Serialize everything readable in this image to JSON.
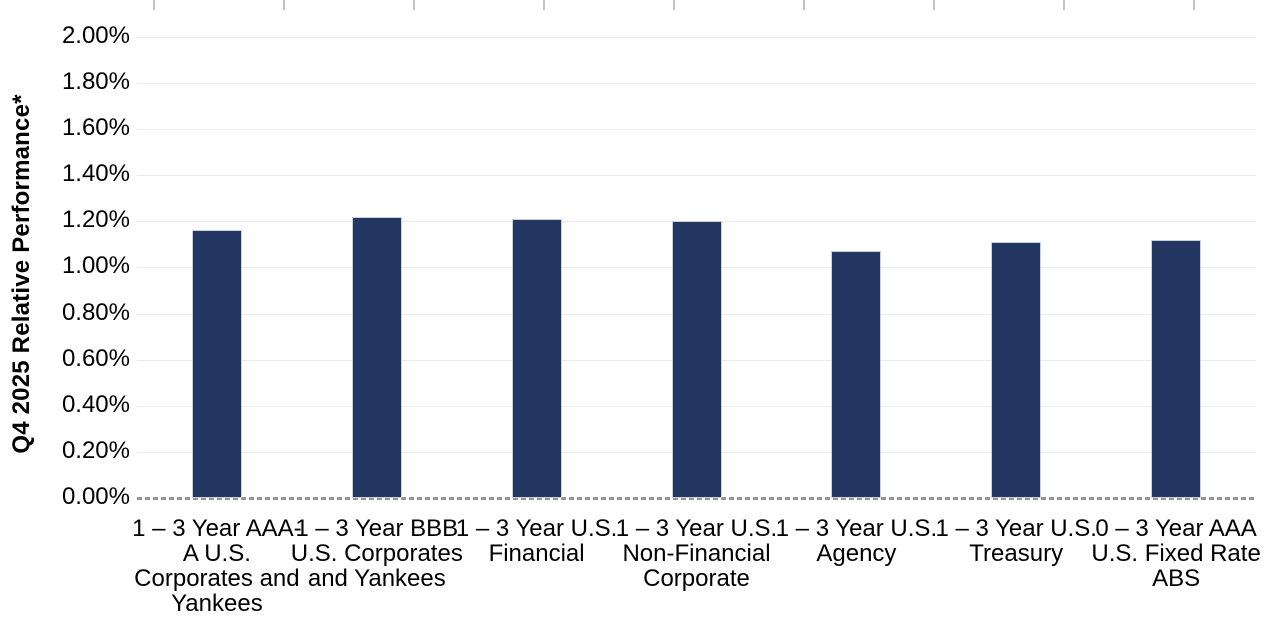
{
  "chart_data": {
    "type": "bar",
    "title": "",
    "xlabel": "",
    "ylabel": "Q4 2025 Relative Performance*",
    "categories": [
      "1 – 3 Year AAA-A U.S. Corporates and Yankees",
      "1 – 3 Year BBB U.S. Corporates and Yankees",
      "1 – 3 Year U.S. Financial",
      "1 – 3 Year U.S. Non-Financial Corporate",
      "1 – 3 Year U.S. Agency",
      "1 – 3 Year U.S. Treasury",
      "0 – 3 Year AAA U.S. Fixed Rate ABS"
    ],
    "category_lines": [
      [
        "1 – 3 Year AAA-",
        "A U.S.",
        "Corporates and",
        "Yankees"
      ],
      [
        "1 – 3 Year BBB",
        "U.S. Corporates",
        "and Yankees"
      ],
      [
        "1 – 3 Year U.S.",
        "Financial"
      ],
      [
        "1 – 3 Year U.S.",
        "Non-Financial",
        "Corporate"
      ],
      [
        "1 – 3 Year U.S.",
        "Agency"
      ],
      [
        "1 – 3 Year U.S.",
        "Treasury"
      ],
      [
        "0 – 3 Year AAA",
        "U.S. Fixed Rate",
        "ABS"
      ]
    ],
    "values": [
      1.16,
      1.22,
      1.21,
      1.2,
      1.07,
      1.11,
      1.12
    ],
    "value_unit": "%",
    "ylim": [
      0,
      2.0
    ],
    "ytick_step": 0.2,
    "ytick_labels": [
      "0.00%",
      "0.20%",
      "0.40%",
      "0.60%",
      "0.80%",
      "1.00%",
      "1.20%",
      "1.40%",
      "1.60%",
      "1.80%",
      "2.00%"
    ],
    "grid": true,
    "zero_line_style": "dashed",
    "legend": "none",
    "colors": {
      "bar": "#243763",
      "bar_border": "#c9d1de",
      "gridline": "#ececec",
      "zero_line": "#949494",
      "top_tick": "#c2c2c2",
      "text": "#000000"
    }
  }
}
